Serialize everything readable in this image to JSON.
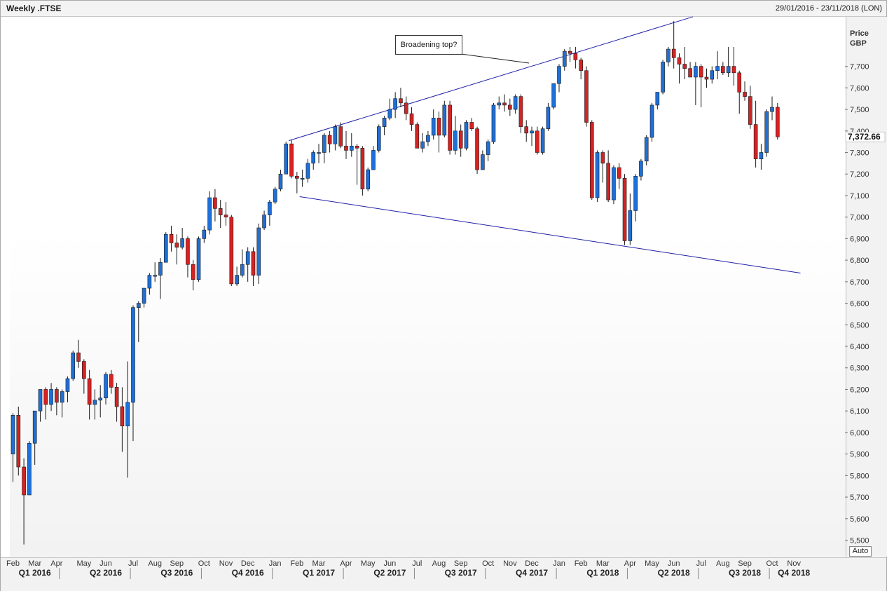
{
  "header": {
    "title": "Weekly .FTSE",
    "date_range": "29/01/2016 - 23/11/2018 (LON)"
  },
  "y_axis": {
    "label_line1": "Price",
    "label_line2": "GBP",
    "auto_label": "Auto"
  },
  "annotation": {
    "text": "Broadening top?"
  },
  "chart_data": {
    "type": "candlestick",
    "interval": "weekly",
    "instrument": ".FTSE",
    "currency": "GBP",
    "ylim": [
      5450,
      7950
    ],
    "y_ticks": [
      5500,
      5600,
      5700,
      5800,
      5900,
      6000,
      6100,
      6200,
      6300,
      6400,
      6500,
      6600,
      6700,
      6800,
      6900,
      7000,
      7100,
      7200,
      7300,
      7400,
      7500,
      7600,
      7700
    ],
    "y_tick_labels": [
      "5,500",
      "5,600",
      "5,700",
      "5,800",
      "5,900",
      "6,000",
      "6,100",
      "6,200",
      "6,300",
      "6,400",
      "6,500",
      "6,600",
      "6,700",
      "6,800",
      "6,900",
      "7,000",
      "7,100",
      "7,200",
      "7,300",
      "7,400",
      "7,500",
      "7,600",
      "7,700"
    ],
    "last_price": 7372.66,
    "last_price_label": "7,372.66",
    "colors": {
      "up": "#1f6fd6",
      "down": "#d42323",
      "trendline": "#1f1fa8",
      "grid": "#d0d0d0"
    },
    "months": [
      {
        "label": "Feb",
        "week": 0
      },
      {
        "label": "Mar",
        "week": 4
      },
      {
        "label": "Apr",
        "week": 8
      },
      {
        "label": "May",
        "week": 13
      },
      {
        "label": "Jun",
        "week": 17
      },
      {
        "label": "Jul",
        "week": 22
      },
      {
        "label": "Aug",
        "week": 26
      },
      {
        "label": "Sep",
        "week": 30
      },
      {
        "label": "Oct",
        "week": 35
      },
      {
        "label": "Nov",
        "week": 39
      },
      {
        "label": "Dec",
        "week": 43
      },
      {
        "label": "Jan",
        "week": 48
      },
      {
        "label": "Feb",
        "week": 52
      },
      {
        "label": "Mar",
        "week": 56
      },
      {
        "label": "Apr",
        "week": 61
      },
      {
        "label": "May",
        "week": 65
      },
      {
        "label": "Jun",
        "week": 69
      },
      {
        "label": "Jul",
        "week": 74
      },
      {
        "label": "Aug",
        "week": 78
      },
      {
        "label": "Sep",
        "week": 82
      },
      {
        "label": "Oct",
        "week": 87
      },
      {
        "label": "Nov",
        "week": 91
      },
      {
        "label": "Dec",
        "week": 95
      },
      {
        "label": "Jan",
        "week": 100
      },
      {
        "label": "Feb",
        "week": 104
      },
      {
        "label": "Mar",
        "week": 108
      },
      {
        "label": "Apr",
        "week": 113
      },
      {
        "label": "May",
        "week": 117
      },
      {
        "label": "Jun",
        "week": 121
      },
      {
        "label": "Jul",
        "week": 126
      },
      {
        "label": "Aug",
        "week": 130
      },
      {
        "label": "Sep",
        "week": 134
      },
      {
        "label": "Oct",
        "week": 139
      },
      {
        "label": "Nov",
        "week": 143
      }
    ],
    "quarters": [
      {
        "label": "Q1 2016",
        "week": 4
      },
      {
        "label": "Q2 2016",
        "week": 17
      },
      {
        "label": "Q3 2016",
        "week": 30
      },
      {
        "label": "Q4 2016",
        "week": 43
      },
      {
        "label": "Q1 2017",
        "week": 56
      },
      {
        "label": "Q2 2017",
        "week": 69
      },
      {
        "label": "Q3 2017",
        "week": 82
      },
      {
        "label": "Q4 2017",
        "week": 95
      },
      {
        "label": "Q1 2018",
        "week": 108
      },
      {
        "label": "Q2 2018",
        "week": 121
      },
      {
        "label": "Q3 2018",
        "week": 134
      },
      {
        "label": "Q4 2018",
        "week": 143
      }
    ],
    "quarter_separators": [
      9,
      22,
      35,
      48,
      61,
      74,
      87,
      100,
      113,
      126,
      139
    ],
    "trendlines": [
      {
        "name": "upper",
        "from": {
          "week": 50.5,
          "price": 7355
        },
        "to": {
          "week": 124.5,
          "price": 7930
        }
      },
      {
        "name": "lower",
        "from": {
          "week": 52.5,
          "price": 7095
        },
        "to": {
          "week": 144.2,
          "price": 6740
        }
      }
    ],
    "annotation_leader": {
      "from_week": 78.5,
      "to_week": 94.5,
      "to_price": 7715
    },
    "candles": [
      {
        "o": 5900,
        "h": 6090,
        "l": 5770,
        "c": 6080
      },
      {
        "o": 6080,
        "h": 6120,
        "l": 5800,
        "c": 5840
      },
      {
        "o": 5840,
        "h": 5880,
        "l": 5480,
        "c": 5710
      },
      {
        "o": 5710,
        "h": 5960,
        "l": 5710,
        "c": 5950
      },
      {
        "o": 5950,
        "h": 6100,
        "l": 5850,
        "c": 6100
      },
      {
        "o": 6100,
        "h": 6200,
        "l": 6050,
        "c": 6200
      },
      {
        "o": 6200,
        "h": 6210,
        "l": 6060,
        "c": 6130
      },
      {
        "o": 6130,
        "h": 6230,
        "l": 6100,
        "c": 6200
      },
      {
        "o": 6200,
        "h": 6210,
        "l": 6080,
        "c": 6140
      },
      {
        "o": 6140,
        "h": 6200,
        "l": 6070,
        "c": 6190
      },
      {
        "o": 6190,
        "h": 6260,
        "l": 6140,
        "c": 6250
      },
      {
        "o": 6250,
        "h": 6380,
        "l": 6240,
        "c": 6370
      },
      {
        "o": 6370,
        "h": 6430,
        "l": 6300,
        "c": 6330
      },
      {
        "o": 6330,
        "h": 6340,
        "l": 6180,
        "c": 6250
      },
      {
        "o": 6250,
        "h": 6290,
        "l": 6060,
        "c": 6130
      },
      {
        "o": 6130,
        "h": 6200,
        "l": 6060,
        "c": 6150
      },
      {
        "o": 6150,
        "h": 6220,
        "l": 6070,
        "c": 6160
      },
      {
        "o": 6160,
        "h": 6280,
        "l": 6130,
        "c": 6270
      },
      {
        "o": 6270,
        "h": 6290,
        "l": 6180,
        "c": 6210
      },
      {
        "o": 6210,
        "h": 6230,
        "l": 6050,
        "c": 6120
      },
      {
        "o": 6120,
        "h": 6210,
        "l": 5910,
        "c": 6030
      },
      {
        "o": 6030,
        "h": 6330,
        "l": 5790,
        "c": 6140
      },
      {
        "o": 6140,
        "h": 6590,
        "l": 5960,
        "c": 6580
      },
      {
        "o": 6580,
        "h": 6610,
        "l": 6420,
        "c": 6600
      },
      {
        "o": 6600,
        "h": 6670,
        "l": 6580,
        "c": 6670
      },
      {
        "o": 6670,
        "h": 6740,
        "l": 6640,
        "c": 6730
      },
      {
        "o": 6730,
        "h": 6790,
        "l": 6700,
        "c": 6730
      },
      {
        "o": 6730,
        "h": 6810,
        "l": 6620,
        "c": 6790
      },
      {
        "o": 6790,
        "h": 6930,
        "l": 6790,
        "c": 6920
      },
      {
        "o": 6920,
        "h": 6960,
        "l": 6840,
        "c": 6880
      },
      {
        "o": 6880,
        "h": 6920,
        "l": 6780,
        "c": 6860
      },
      {
        "o": 6860,
        "h": 6950,
        "l": 6850,
        "c": 6900
      },
      {
        "o": 6900,
        "h": 6910,
        "l": 6720,
        "c": 6780
      },
      {
        "o": 6780,
        "h": 6800,
        "l": 6660,
        "c": 6710
      },
      {
        "o": 6710,
        "h": 6910,
        "l": 6700,
        "c": 6900
      },
      {
        "o": 6900,
        "h": 6960,
        "l": 6880,
        "c": 6940
      },
      {
        "o": 6940,
        "h": 7120,
        "l": 6920,
        "c": 7090
      },
      {
        "o": 7090,
        "h": 7130,
        "l": 6980,
        "c": 7040
      },
      {
        "o": 7040,
        "h": 7080,
        "l": 6950,
        "c": 7010
      },
      {
        "o": 7010,
        "h": 7070,
        "l": 6960,
        "c": 7000
      },
      {
        "o": 7000,
        "h": 7010,
        "l": 6680,
        "c": 6690
      },
      {
        "o": 6690,
        "h": 6770,
        "l": 6680,
        "c": 6730
      },
      {
        "o": 6730,
        "h": 6850,
        "l": 6720,
        "c": 6780
      },
      {
        "o": 6780,
        "h": 6860,
        "l": 6700,
        "c": 6840
      },
      {
        "o": 6840,
        "h": 6860,
        "l": 6680,
        "c": 6730
      },
      {
        "o": 6730,
        "h": 6970,
        "l": 6690,
        "c": 6950
      },
      {
        "o": 6950,
        "h": 7030,
        "l": 6940,
        "c": 7010
      },
      {
        "o": 7010,
        "h": 7080,
        "l": 6960,
        "c": 7070
      },
      {
        "o": 7070,
        "h": 7140,
        "l": 7060,
        "c": 7130
      },
      {
        "o": 7130,
        "h": 7220,
        "l": 7120,
        "c": 7200
      },
      {
        "o": 7200,
        "h": 7350,
        "l": 7200,
        "c": 7340
      },
      {
        "o": 7340,
        "h": 7360,
        "l": 7180,
        "c": 7190
      },
      {
        "o": 7190,
        "h": 7210,
        "l": 7110,
        "c": 7180
      },
      {
        "o": 7180,
        "h": 7220,
        "l": 7140,
        "c": 7180
      },
      {
        "o": 7180,
        "h": 7270,
        "l": 7160,
        "c": 7250
      },
      {
        "o": 7250,
        "h": 7310,
        "l": 7220,
        "c": 7300
      },
      {
        "o": 7300,
        "h": 7340,
        "l": 7250,
        "c": 7300
      },
      {
        "o": 7300,
        "h": 7390,
        "l": 7250,
        "c": 7380
      },
      {
        "o": 7380,
        "h": 7400,
        "l": 7300,
        "c": 7340
      },
      {
        "o": 7340,
        "h": 7430,
        "l": 7310,
        "c": 7420
      },
      {
        "o": 7420,
        "h": 7440,
        "l": 7320,
        "c": 7330
      },
      {
        "o": 7330,
        "h": 7400,
        "l": 7270,
        "c": 7310
      },
      {
        "o": 7310,
        "h": 7390,
        "l": 7280,
        "c": 7330
      },
      {
        "o": 7330,
        "h": 7340,
        "l": 7150,
        "c": 7320
      },
      {
        "o": 7320,
        "h": 7330,
        "l": 7100,
        "c": 7130
      },
      {
        "o": 7130,
        "h": 7230,
        "l": 7120,
        "c": 7220
      },
      {
        "o": 7220,
        "h": 7330,
        "l": 7220,
        "c": 7310
      },
      {
        "o": 7310,
        "h": 7430,
        "l": 7300,
        "c": 7420
      },
      {
        "o": 7420,
        "h": 7470,
        "l": 7380,
        "c": 7460
      },
      {
        "o": 7460,
        "h": 7550,
        "l": 7450,
        "c": 7500
      },
      {
        "o": 7500,
        "h": 7580,
        "l": 7460,
        "c": 7550
      },
      {
        "o": 7550,
        "h": 7600,
        "l": 7510,
        "c": 7530
      },
      {
        "o": 7530,
        "h": 7560,
        "l": 7450,
        "c": 7480
      },
      {
        "o": 7480,
        "h": 7510,
        "l": 7400,
        "c": 7430
      },
      {
        "o": 7430,
        "h": 7440,
        "l": 7320,
        "c": 7320
      },
      {
        "o": 7320,
        "h": 7390,
        "l": 7300,
        "c": 7350
      },
      {
        "o": 7350,
        "h": 7400,
        "l": 7330,
        "c": 7380
      },
      {
        "o": 7380,
        "h": 7500,
        "l": 7360,
        "c": 7460
      },
      {
        "o": 7460,
        "h": 7490,
        "l": 7300,
        "c": 7380
      },
      {
        "o": 7380,
        "h": 7540,
        "l": 7370,
        "c": 7520
      },
      {
        "o": 7520,
        "h": 7540,
        "l": 7290,
        "c": 7310
      },
      {
        "o": 7310,
        "h": 7470,
        "l": 7290,
        "c": 7400
      },
      {
        "o": 7400,
        "h": 7430,
        "l": 7280,
        "c": 7320
      },
      {
        "o": 7320,
        "h": 7450,
        "l": 7310,
        "c": 7440
      },
      {
        "o": 7440,
        "h": 7460,
        "l": 7400,
        "c": 7410
      },
      {
        "o": 7410,
        "h": 7420,
        "l": 7200,
        "c": 7220
      },
      {
        "o": 7220,
        "h": 7310,
        "l": 7220,
        "c": 7290
      },
      {
        "o": 7290,
        "h": 7360,
        "l": 7260,
        "c": 7350
      },
      {
        "o": 7350,
        "h": 7530,
        "l": 7340,
        "c": 7520
      },
      {
        "o": 7520,
        "h": 7560,
        "l": 7500,
        "c": 7530
      },
      {
        "o": 7530,
        "h": 7570,
        "l": 7490,
        "c": 7520
      },
      {
        "o": 7520,
        "h": 7550,
        "l": 7470,
        "c": 7500
      },
      {
        "o": 7500,
        "h": 7570,
        "l": 7480,
        "c": 7560
      },
      {
        "o": 7560,
        "h": 7570,
        "l": 7390,
        "c": 7420
      },
      {
        "o": 7420,
        "h": 7450,
        "l": 7350,
        "c": 7390
      },
      {
        "o": 7390,
        "h": 7420,
        "l": 7330,
        "c": 7400
      },
      {
        "o": 7400,
        "h": 7420,
        "l": 7290,
        "c": 7300
      },
      {
        "o": 7300,
        "h": 7420,
        "l": 7290,
        "c": 7410
      },
      {
        "o": 7410,
        "h": 7530,
        "l": 7400,
        "c": 7510
      },
      {
        "o": 7510,
        "h": 7620,
        "l": 7500,
        "c": 7620
      },
      {
        "o": 7620,
        "h": 7710,
        "l": 7580,
        "c": 7700
      },
      {
        "o": 7700,
        "h": 7780,
        "l": 7680,
        "c": 7770
      },
      {
        "o": 7770,
        "h": 7790,
        "l": 7720,
        "c": 7760
      },
      {
        "o": 7760,
        "h": 7790,
        "l": 7690,
        "c": 7730
      },
      {
        "o": 7730,
        "h": 7740,
        "l": 7640,
        "c": 7680
      },
      {
        "o": 7680,
        "h": 7700,
        "l": 7420,
        "c": 7440
      },
      {
        "o": 7440,
        "h": 7450,
        "l": 7080,
        "c": 7090
      },
      {
        "o": 7090,
        "h": 7310,
        "l": 7070,
        "c": 7300
      },
      {
        "o": 7300,
        "h": 7310,
        "l": 7160,
        "c": 7250
      },
      {
        "o": 7250,
        "h": 7310,
        "l": 7070,
        "c": 7080
      },
      {
        "o": 7080,
        "h": 7240,
        "l": 7060,
        "c": 7230
      },
      {
        "o": 7230,
        "h": 7250,
        "l": 7130,
        "c": 7180
      },
      {
        "o": 7180,
        "h": 7200,
        "l": 6870,
        "c": 6890
      },
      {
        "o": 6890,
        "h": 7110,
        "l": 6870,
        "c": 7030
      },
      {
        "o": 7030,
        "h": 7200,
        "l": 6980,
        "c": 7190
      },
      {
        "o": 7190,
        "h": 7270,
        "l": 7170,
        "c": 7260
      },
      {
        "o": 7260,
        "h": 7380,
        "l": 7240,
        "c": 7370
      },
      {
        "o": 7370,
        "h": 7530,
        "l": 7350,
        "c": 7520
      },
      {
        "o": 7520,
        "h": 7580,
        "l": 7500,
        "c": 7580
      },
      {
        "o": 7580,
        "h": 7730,
        "l": 7570,
        "c": 7720
      },
      {
        "o": 7720,
        "h": 7790,
        "l": 7700,
        "c": 7780
      },
      {
        "o": 7780,
        "h": 7910,
        "l": 7690,
        "c": 7740
      },
      {
        "o": 7740,
        "h": 7760,
        "l": 7620,
        "c": 7710
      },
      {
        "o": 7710,
        "h": 7790,
        "l": 7640,
        "c": 7690
      },
      {
        "o": 7690,
        "h": 7720,
        "l": 7650,
        "c": 7650
      },
      {
        "o": 7650,
        "h": 7720,
        "l": 7520,
        "c": 7700
      },
      {
        "o": 7700,
        "h": 7710,
        "l": 7510,
        "c": 7650
      },
      {
        "o": 7650,
        "h": 7690,
        "l": 7600,
        "c": 7640
      },
      {
        "o": 7640,
        "h": 7700,
        "l": 7620,
        "c": 7680
      },
      {
        "o": 7680,
        "h": 7770,
        "l": 7640,
        "c": 7700
      },
      {
        "o": 7700,
        "h": 7720,
        "l": 7660,
        "c": 7670
      },
      {
        "o": 7670,
        "h": 7790,
        "l": 7650,
        "c": 7700
      },
      {
        "o": 7700,
        "h": 7790,
        "l": 7610,
        "c": 7670
      },
      {
        "o": 7670,
        "h": 7680,
        "l": 7480,
        "c": 7580
      },
      {
        "o": 7580,
        "h": 7630,
        "l": 7540,
        "c": 7560
      },
      {
        "o": 7560,
        "h": 7610,
        "l": 7410,
        "c": 7430
      },
      {
        "o": 7430,
        "h": 7540,
        "l": 7230,
        "c": 7270
      },
      {
        "o": 7270,
        "h": 7340,
        "l": 7220,
        "c": 7300
      },
      {
        "o": 7300,
        "h": 7500,
        "l": 7280,
        "c": 7490
      },
      {
        "o": 7490,
        "h": 7560,
        "l": 7450,
        "c": 7510
      },
      {
        "o": 7510,
        "h": 7530,
        "l": 7360,
        "c": 7372.66
      }
    ]
  }
}
